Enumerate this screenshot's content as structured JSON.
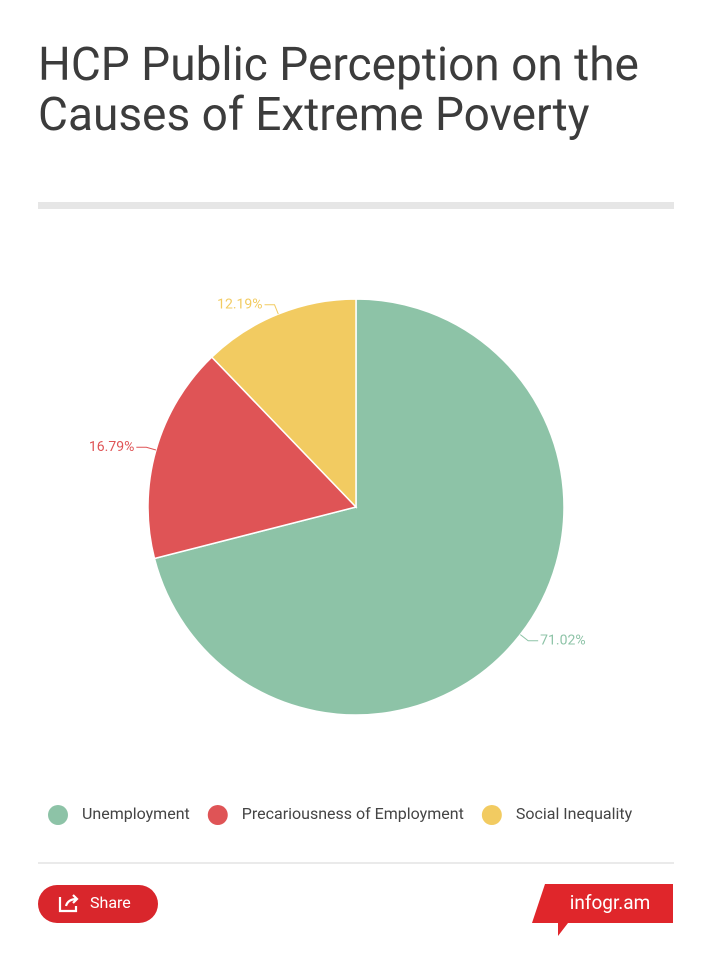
{
  "chart_data": {
    "type": "pie",
    "title": "HCP Public Perception on the Causes of Extreme Poverty",
    "categories": [
      "Unemployment",
      "Precariousness of Employment",
      "Social Inequality"
    ],
    "values": [
      71.02,
      16.79,
      12.19
    ],
    "value_labels": [
      "71.02%",
      "16.79%",
      "12.19%"
    ],
    "colors": [
      "#8dc3a7",
      "#df5456",
      "#f2cb61"
    ],
    "legend": "bottom"
  },
  "footer": {
    "share": "Share",
    "brand": "infogr.am"
  }
}
